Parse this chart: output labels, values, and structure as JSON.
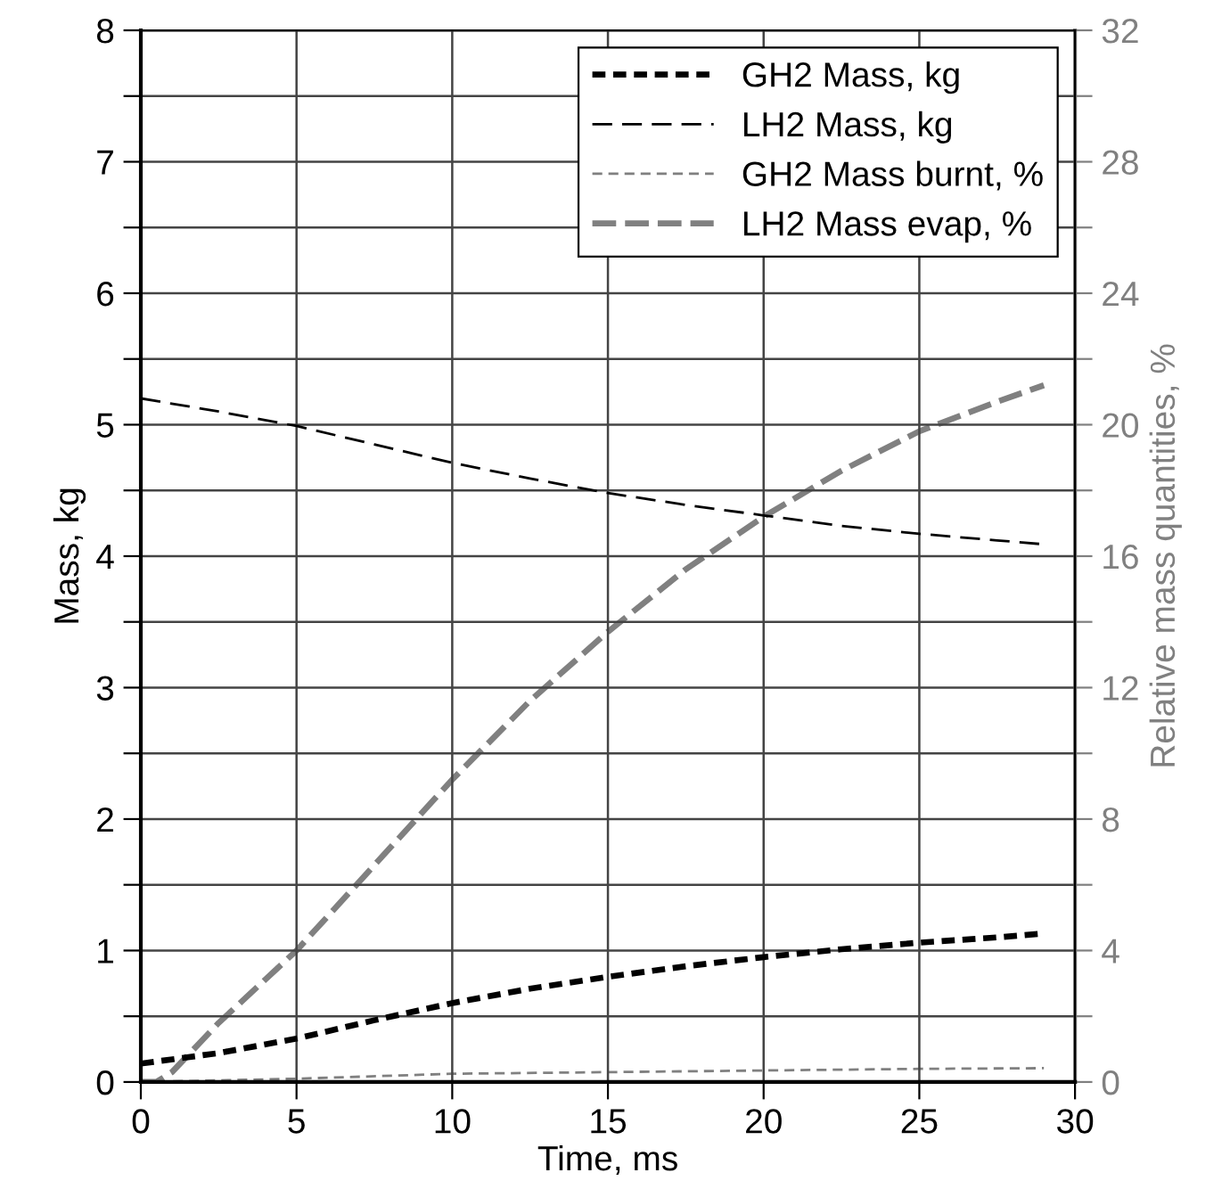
{
  "chart_data": {
    "type": "line",
    "xlabel": "Time, ms",
    "ylabel": "Mass, kg",
    "y2label": "Relative mass quantities, %",
    "xlim": [
      0,
      30
    ],
    "xticks": [
      0,
      5,
      10,
      15,
      20,
      25,
      30
    ],
    "ylim": [
      0,
      8
    ],
    "yticks": [
      0,
      {
        "value": 0.5,
        "label": null
      },
      1,
      {
        "value": 1.5,
        "label": null
      },
      2,
      {
        "value": 2.5,
        "label": null
      },
      3,
      {
        "value": 3.5,
        "label": null
      },
      4,
      {
        "value": 4.5,
        "label": null
      },
      5,
      {
        "value": 5.5,
        "label": null
      },
      6,
      {
        "value": 6.5,
        "label": null
      },
      7,
      {
        "value": 7.5,
        "label": null
      },
      8
    ],
    "y2lim": [
      0,
      32
    ],
    "y2ticks": [
      0,
      {
        "value": 2,
        "label": null
      },
      4,
      {
        "value": 6,
        "label": null
      },
      8,
      {
        "value": 10,
        "label": null
      },
      12,
      {
        "value": 14,
        "label": null
      },
      16,
      {
        "value": 18,
        "label": null
      },
      20,
      {
        "value": 22,
        "label": null
      },
      24,
      {
        "value": 26,
        "label": null
      },
      28,
      {
        "value": 30,
        "label": null
      },
      32
    ],
    "grid": true,
    "legend": "top right",
    "line_style": "dashed",
    "series": [
      {
        "name": "GH2 Mass, kg",
        "color": "#000000",
        "x": [
          0,
          2.5,
          5,
          7.5,
          10,
          12.5,
          15,
          17.5,
          20,
          22.5,
          25,
          27.5,
          29
        ],
        "values": [
          0.14,
          0.22,
          0.33,
          0.47,
          0.6,
          0.71,
          0.8,
          0.88,
          0.95,
          1.01,
          1.06,
          1.1,
          1.13
        ]
      },
      {
        "name": "LH2 Mass, kg",
        "color": "#000000",
        "x": [
          0,
          2.5,
          5,
          7.5,
          10,
          12.5,
          15,
          17.5,
          20,
          22.5,
          25,
          27.5,
          29
        ],
        "values": [
          5.2,
          5.1,
          4.99,
          4.85,
          4.71,
          4.59,
          4.48,
          4.39,
          4.31,
          4.23,
          4.17,
          4.12,
          4.09
        ]
      },
      {
        "name": "GH2 Mass burnt, %",
        "color": "#808080",
        "axis": "y2",
        "x": [
          0,
          5,
          10,
          15,
          20,
          25,
          29
        ],
        "values": [
          0,
          0.1,
          0.25,
          0.3,
          0.35,
          0.4,
          0.42
        ]
      },
      {
        "name": "LH2 Mass evap, %",
        "color": "#808080",
        "axis": "y2",
        "x": [
          0,
          0.5,
          1,
          2.5,
          5,
          7.5,
          10,
          12.5,
          15,
          17.5,
          20,
          22.5,
          25,
          27.5,
          29
        ],
        "values": [
          0,
          0,
          0.3,
          1.8,
          4,
          6.6,
          9.2,
          11.6,
          13.7,
          15.6,
          17.2,
          18.6,
          19.8,
          20.7,
          21.2
        ]
      }
    ]
  }
}
